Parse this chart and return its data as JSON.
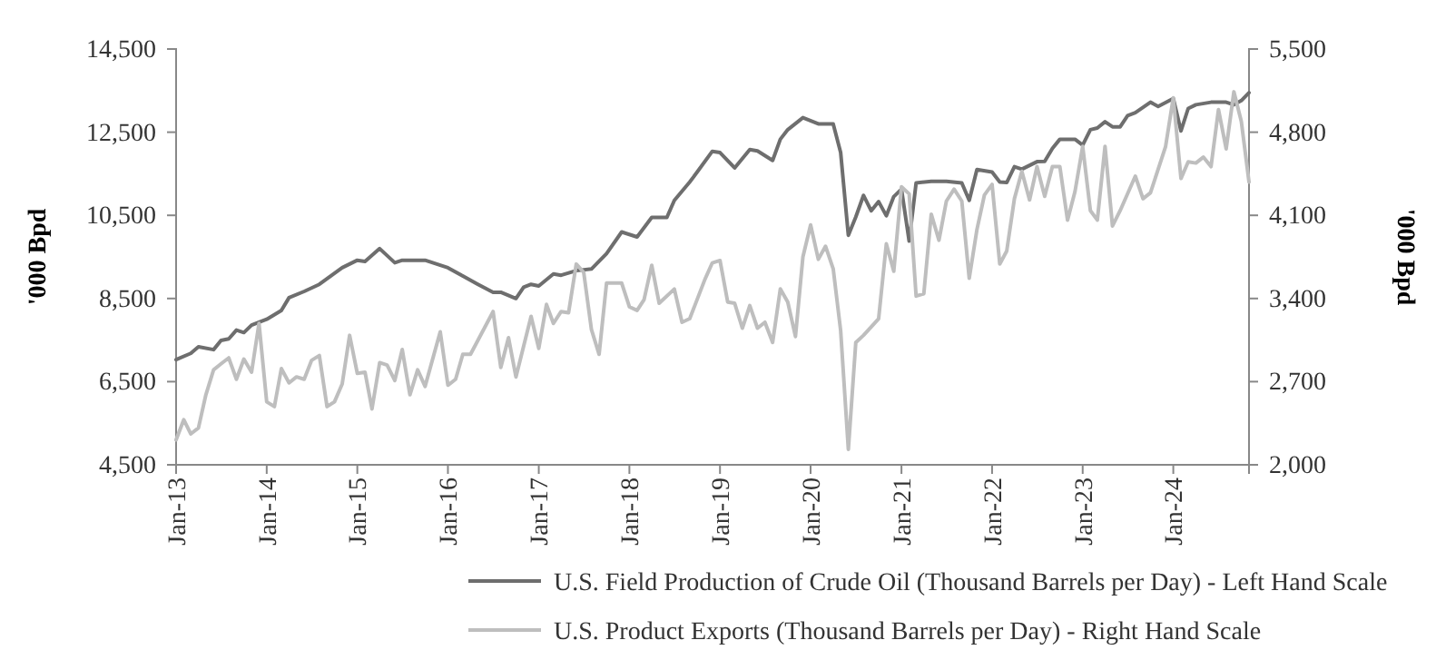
{
  "chart_data": {
    "type": "line",
    "ylabel": "'000 Bpd",
    "y2label": "'000 Bpd",
    "legend": "bottom",
    "grid": false,
    "marker": "none",
    "line_style": "solid",
    "xlim": [
      "2013-01",
      "2024-11"
    ],
    "xticks": [
      {
        "value": "2013-01",
        "label": "Jan-13"
      },
      {
        "value": "2014-01",
        "label": "Jan-14"
      },
      {
        "value": "2015-01",
        "label": "Jan-15"
      },
      {
        "value": "2016-01",
        "label": "Jan-16"
      },
      {
        "value": "2017-01",
        "label": "Jan-17"
      },
      {
        "value": "2018-01",
        "label": "Jan-18"
      },
      {
        "value": "2019-01",
        "label": "Jan-19"
      },
      {
        "value": "2020-01",
        "label": "Jan-20"
      },
      {
        "value": "2021-01",
        "label": "Jan-21"
      },
      {
        "value": "2022-01",
        "label": "Jan-22"
      },
      {
        "value": "2023-01",
        "label": "Jan-23"
      },
      {
        "value": "2024-01",
        "label": "Jan-24"
      }
    ],
    "ylim": [
      4500,
      14500
    ],
    "yticks": [
      {
        "value": 4500,
        "label": "4,500"
      },
      {
        "value": 6500,
        "label": "6,500"
      },
      {
        "value": 8500,
        "label": "8,500"
      },
      {
        "value": 10500,
        "label": "10,500"
      },
      {
        "value": 12500,
        "label": "12,500"
      },
      {
        "value": 14500,
        "label": "14,500"
      }
    ],
    "y2lim": [
      2000,
      5500
    ],
    "y2ticks": [
      {
        "value": 2000,
        "label": "2,000"
      },
      {
        "value": 2700,
        "label": "2,700"
      },
      {
        "value": 3400,
        "label": "3,400"
      },
      {
        "value": 4100,
        "label": "4,100"
      },
      {
        "value": 4800,
        "label": "4,800"
      },
      {
        "value": 5500,
        "label": "5,500"
      }
    ],
    "series": [
      {
        "name": "U.S. Field Production of Crude Oil (Thousand Barrels per Day) - Left Hand Scale",
        "color": "#6e6e6e",
        "axis": "y",
        "x": [
          "2013-01",
          "2013-03",
          "2013-04",
          "2013-06",
          "2013-07",
          "2013-08",
          "2013-09",
          "2013-10",
          "2013-11",
          "2014-01",
          "2014-03",
          "2014-04",
          "2014-06",
          "2014-08",
          "2014-11",
          "2015-01",
          "2015-02",
          "2015-04",
          "2015-06",
          "2015-07",
          "2015-10",
          "2016-01",
          "2016-03",
          "2016-05",
          "2016-07",
          "2016-08",
          "2016-10",
          "2016-11",
          "2016-12",
          "2017-01",
          "2017-03",
          "2017-04",
          "2017-06",
          "2017-08",
          "2017-10",
          "2017-12",
          "2018-02",
          "2018-04",
          "2018-06",
          "2018-07",
          "2018-09",
          "2018-10",
          "2018-12",
          "2019-01",
          "2019-03",
          "2019-05",
          "2019-06",
          "2019-08",
          "2019-09",
          "2019-10",
          "2019-12",
          "2020-02",
          "2020-04",
          "2020-05",
          "2020-06",
          "2020-07",
          "2020-08",
          "2020-09",
          "2020-10",
          "2020-11",
          "2020-12",
          "2021-01",
          "2021-02",
          "2021-03",
          "2021-05",
          "2021-07",
          "2021-09",
          "2021-10",
          "2021-11",
          "2022-01",
          "2022-02",
          "2022-03",
          "2022-04",
          "2022-05",
          "2022-07",
          "2022-08",
          "2022-09",
          "2022-10",
          "2022-12",
          "2023-01",
          "2023-02",
          "2023-03",
          "2023-04",
          "2023-05",
          "2023-06",
          "2023-07",
          "2023-08",
          "2023-10",
          "2023-11",
          "2024-01",
          "2024-02",
          "2024-03",
          "2024-04",
          "2024-06",
          "2024-08",
          "2024-09",
          "2024-10",
          "2024-11"
        ],
        "values": [
          7030,
          7180,
          7340,
          7270,
          7490,
          7530,
          7740,
          7680,
          7860,
          8000,
          8210,
          8520,
          8670,
          8840,
          9240,
          9420,
          9390,
          9700,
          9360,
          9420,
          9420,
          9240,
          9040,
          8840,
          8650,
          8650,
          8500,
          8770,
          8840,
          8800,
          9090,
          9060,
          9170,
          9210,
          9580,
          10100,
          9980,
          10450,
          10450,
          10860,
          11300,
          11540,
          12040,
          12010,
          11640,
          12080,
          12050,
          11820,
          12330,
          12560,
          12850,
          12700,
          12700,
          12010,
          10020,
          10460,
          10980,
          10610,
          10830,
          10490,
          10950,
          11130,
          9880,
          11280,
          11320,
          11320,
          11280,
          10860,
          11600,
          11540,
          11300,
          11290,
          11670,
          11610,
          11790,
          11800,
          12110,
          12330,
          12330,
          12190,
          12560,
          12600,
          12750,
          12630,
          12630,
          12900,
          12970,
          13220,
          13120,
          13310,
          12530,
          13070,
          13160,
          13220,
          13220,
          13160,
          13260,
          13450
        ]
      },
      {
        "name": "U.S. Product Exports (Thousand Barrels per Day) - Right Hand Scale",
        "color": "#bebebe",
        "axis": "y2",
        "x": [
          "2013-01",
          "2013-02",
          "2013-03",
          "2013-04",
          "2013-05",
          "2013-06",
          "2013-07",
          "2013-08",
          "2013-09",
          "2013-10",
          "2013-11",
          "2013-12",
          "2014-01",
          "2014-02",
          "2014-03",
          "2014-04",
          "2014-05",
          "2014-06",
          "2014-07",
          "2014-08",
          "2014-09",
          "2014-10",
          "2014-11",
          "2014-12",
          "2015-01",
          "2015-02",
          "2015-03",
          "2015-04",
          "2015-05",
          "2015-06",
          "2015-07",
          "2015-08",
          "2015-09",
          "2015-10",
          "2015-12",
          "2016-01",
          "2016-02",
          "2016-03",
          "2016-04",
          "2016-07",
          "2016-08",
          "2016-09",
          "2016-10",
          "2016-12",
          "2017-01",
          "2017-02",
          "2017-03",
          "2017-04",
          "2017-05",
          "2017-06",
          "2017-07",
          "2017-08",
          "2017-09",
          "2017-10",
          "2017-12",
          "2018-01",
          "2018-02",
          "2018-03",
          "2018-04",
          "2018-05",
          "2018-07",
          "2018-08",
          "2018-09",
          "2018-11",
          "2018-12",
          "2019-01",
          "2019-02",
          "2019-03",
          "2019-04",
          "2019-05",
          "2019-06",
          "2019-07",
          "2019-08",
          "2019-09",
          "2019-10",
          "2019-11",
          "2019-12",
          "2020-01",
          "2020-02",
          "2020-03",
          "2020-04",
          "2020-05",
          "2020-06",
          "2020-07",
          "2020-08",
          "2020-09",
          "2020-10",
          "2020-11",
          "2020-12",
          "2021-01",
          "2021-02",
          "2021-03",
          "2021-04",
          "2021-05",
          "2021-06",
          "2021-07",
          "2021-08",
          "2021-09",
          "2021-10",
          "2021-11",
          "2021-12",
          "2022-01",
          "2022-02",
          "2022-03",
          "2022-04",
          "2022-05",
          "2022-06",
          "2022-07",
          "2022-08",
          "2022-09",
          "2022-10",
          "2022-11",
          "2022-12",
          "2023-01",
          "2023-02",
          "2023-03",
          "2023-04",
          "2023-05",
          "2023-06",
          "2023-08",
          "2023-09",
          "2023-10",
          "2023-12",
          "2024-01",
          "2024-02",
          "2024-03",
          "2024-04",
          "2024-05",
          "2024-06",
          "2024-07",
          "2024-08",
          "2024-09",
          "2024-10",
          "2024-11"
        ],
        "values": [
          2210,
          2380,
          2260,
          2310,
          2590,
          2800,
          2850,
          2900,
          2720,
          2890,
          2780,
          3190,
          2530,
          2490,
          2810,
          2690,
          2740,
          2720,
          2880,
          2920,
          2490,
          2530,
          2680,
          3090,
          2770,
          2780,
          2470,
          2860,
          2840,
          2710,
          2970,
          2590,
          2800,
          2660,
          3120,
          2670,
          2720,
          2930,
          2930,
          3290,
          2820,
          3070,
          2740,
          3250,
          2980,
          3350,
          3190,
          3290,
          3280,
          3690,
          3620,
          3140,
          2930,
          3530,
          3530,
          3330,
          3300,
          3390,
          3680,
          3360,
          3480,
          3200,
          3230,
          3560,
          3700,
          3720,
          3370,
          3360,
          3150,
          3340,
          3150,
          3200,
          3030,
          3480,
          3370,
          3080,
          3750,
          4020,
          3730,
          3840,
          3650,
          3130,
          2130,
          3030,
          3090,
          3160,
          3230,
          3860,
          3630,
          4340,
          4280,
          3420,
          3440,
          4110,
          3890,
          4220,
          4320,
          4220,
          3570,
          3980,
          4270,
          4360,
          3690,
          3800,
          4240,
          4470,
          4230,
          4510,
          4260,
          4510,
          4510,
          4060,
          4300,
          4680,
          4140,
          4060,
          4680,
          4010,
          4140,
          4430,
          4240,
          4290,
          4680,
          5090,
          4410,
          4550,
          4540,
          4590,
          4510,
          4990,
          4660,
          5140,
          4890,
          4380
        ]
      }
    ]
  }
}
